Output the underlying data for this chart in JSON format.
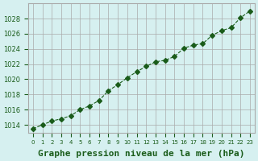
{
  "x": [
    0,
    1,
    2,
    3,
    4,
    5,
    6,
    7,
    8,
    9,
    10,
    11,
    12,
    13,
    14,
    15,
    16,
    17,
    18,
    19,
    20,
    21,
    22,
    23
  ],
  "y": [
    1013.5,
    1014.0,
    1014.5,
    1014.8,
    1015.2,
    1016.0,
    1016.5,
    1017.2,
    1018.5,
    1019.3,
    1020.2,
    1021.0,
    1021.7,
    1022.3,
    1022.5,
    1023.0,
    1024.1,
    1024.5,
    1024.7,
    1025.8,
    1026.4,
    1026.8,
    1028.1,
    1029.0
  ],
  "line_color": "#1a5c1a",
  "marker": "D",
  "marker_size": 3,
  "line_width": 0.8,
  "bg_color": "#d6f0f0",
  "grid_color": "#aaaaaa",
  "xlabel": "Graphe pression niveau de la mer (hPa)",
  "xlabel_fontsize": 8,
  "xlabel_color": "#1a5c1a",
  "tick_color": "#1a5c1a",
  "ylim_min": 1013,
  "ylim_max": 1030,
  "ytick_step": 2,
  "xlim_min": 0,
  "xlim_max": 23
}
